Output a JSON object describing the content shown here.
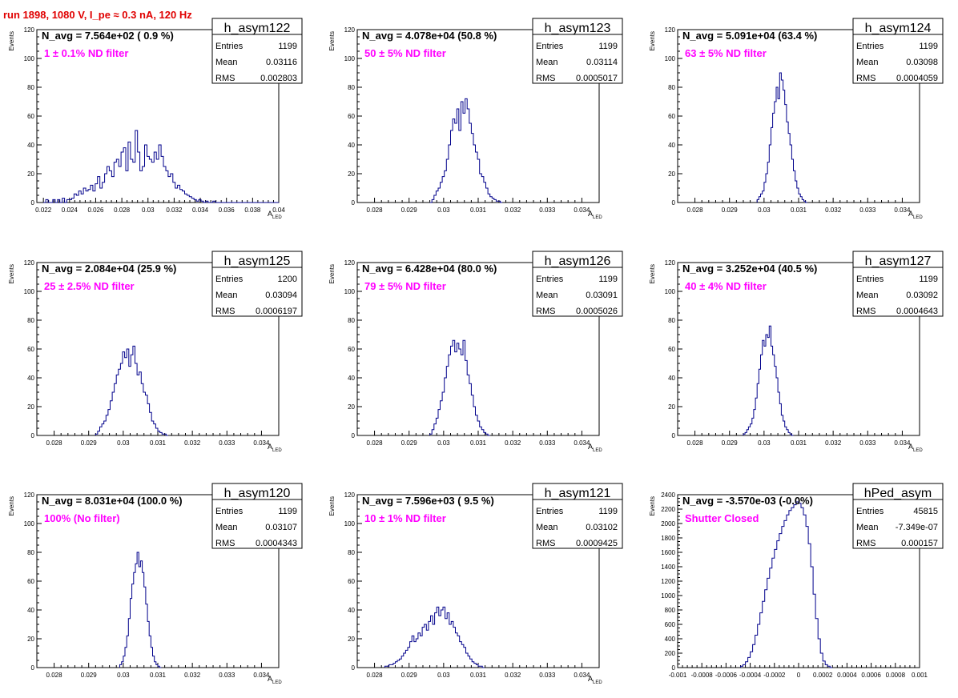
{
  "page": {
    "title": "run 1898,  1080 V, I_pe ≈ 0.3 nA, 120 Hz"
  },
  "colors": {
    "histogram_line": "#00008b",
    "annotation": "#ff00ff",
    "title": "#e00000",
    "axis": "#000000"
  },
  "chart_data": [
    {
      "type": "histogram",
      "name": "h_asym122",
      "ylabel": "Events",
      "xlabel": "A_LED",
      "navg_label": "N_avg = 7.564e+02 ( 0.9 %)",
      "annotation": "1 ± 0.1% ND filter",
      "stats": {
        "Entries": "1199",
        "Mean": "0.03116",
        "RMS": "0.002803"
      },
      "xlim": [
        0.0215,
        0.04
      ],
      "ylim": [
        0,
        120
      ],
      "xticks": [
        "0.022",
        "0.024",
        "0.026",
        "0.028",
        "0.03",
        "0.032",
        "0.034",
        "0.036",
        "0.038",
        "0.04"
      ],
      "xtick_values": [
        0.022,
        0.024,
        0.026,
        0.028,
        0.03,
        0.032,
        0.034,
        0.036,
        0.038,
        0.04
      ],
      "yticks": [
        0,
        20,
        40,
        60,
        80,
        100,
        120
      ],
      "bins": {
        "start": 0.022,
        "width": 0.00018,
        "values": [
          0,
          2,
          0,
          0,
          2,
          0,
          2,
          0,
          3,
          0,
          2,
          2,
          3,
          6,
          5,
          8,
          6,
          10,
          8,
          9,
          12,
          8,
          13,
          18,
          10,
          14,
          20,
          25,
          22,
          18,
          28,
          30,
          25,
          35,
          38,
          22,
          42,
          30,
          28,
          50,
          35,
          22,
          25,
          40,
          32,
          30,
          28,
          35,
          30,
          40,
          32,
          25,
          22,
          18,
          20,
          14,
          10,
          12,
          9,
          8,
          6,
          5,
          4,
          3,
          2,
          1,
          2,
          1,
          0,
          1,
          0,
          0,
          1,
          0,
          0,
          0,
          0,
          0,
          0,
          0,
          0,
          0,
          0,
          0,
          0,
          0,
          0,
          0,
          0,
          0,
          0,
          0,
          0,
          0,
          0,
          0,
          0,
          0,
          0,
          0
        ]
      }
    },
    {
      "type": "histogram",
      "name": "h_asym123",
      "ylabel": "Events",
      "xlabel": "A_LED",
      "navg_label": "N_avg = 4.078e+04 (50.8 %)",
      "annotation": "50 ± 5% ND filter",
      "stats": {
        "Entries": "1199",
        "Mean": "0.03114",
        "RMS": "0.0005017"
      },
      "xlim": [
        0.0275,
        0.0345
      ],
      "ylim": [
        0,
        120
      ],
      "xticks": [
        "0.028",
        "0.029",
        "0.03",
        "0.031",
        "0.032",
        "0.033",
        "0.034"
      ],
      "xtick_values": [
        0.028,
        0.029,
        0.03,
        0.031,
        0.032,
        0.033,
        0.034
      ],
      "yticks": [
        0,
        20,
        40,
        60,
        80,
        100,
        120
      ],
      "bins": {
        "start": 0.0296,
        "width": 6e-05,
        "values": [
          0,
          2,
          5,
          8,
          10,
          14,
          18,
          22,
          30,
          40,
          50,
          58,
          55,
          65,
          50,
          70,
          62,
          72,
          65,
          55,
          48,
          40,
          35,
          30,
          20,
          18,
          14,
          10,
          6,
          4,
          3,
          2,
          1,
          1,
          0
        ]
      }
    },
    {
      "type": "histogram",
      "name": "h_asym124",
      "ylabel": "Events",
      "xlabel": "A_LED",
      "navg_label": "N_avg = 5.091e+04 (63.4 %)",
      "annotation": "63 ± 5% ND filter",
      "stats": {
        "Entries": "1199",
        "Mean": "0.03098",
        "RMS": "0.0004059"
      },
      "xlim": [
        0.0275,
        0.0345
      ],
      "ylim": [
        0,
        120
      ],
      "xticks": [
        "0.028",
        "0.029",
        "0.03",
        "0.031",
        "0.032",
        "0.033",
        "0.034"
      ],
      "xtick_values": [
        0.028,
        0.029,
        0.03,
        0.031,
        0.032,
        0.033,
        0.034
      ],
      "yticks": [
        0,
        20,
        40,
        60,
        80,
        100,
        120
      ],
      "bins": {
        "start": 0.0298,
        "width": 5e-05,
        "values": [
          2,
          4,
          6,
          8,
          14,
          20,
          28,
          40,
          52,
          62,
          70,
          80,
          72,
          90,
          85,
          78,
          68,
          56,
          48,
          40,
          30,
          22,
          15,
          10,
          6,
          4,
          2,
          1,
          0
        ]
      }
    },
    {
      "type": "histogram",
      "name": "h_asym125",
      "ylabel": "Events",
      "xlabel": "A_LED",
      "navg_label": "N_avg = 2.084e+04 (25.9 %)",
      "annotation": "25 ± 2.5% ND filter",
      "stats": {
        "Entries": "1200",
        "Mean": "0.03094",
        "RMS": "0.0006197"
      },
      "xlim": [
        0.0275,
        0.0345
      ],
      "ylim": [
        0,
        120
      ],
      "xticks": [
        "0.028",
        "0.029",
        "0.03",
        "0.031",
        "0.032",
        "0.033",
        "0.034"
      ],
      "xtick_values": [
        0.028,
        0.029,
        0.03,
        0.031,
        0.032,
        0.033,
        0.034
      ],
      "yticks": [
        0,
        20,
        40,
        60,
        80,
        100,
        120
      ],
      "bins": {
        "start": 0.0292,
        "width": 6e-05,
        "values": [
          1,
          3,
          6,
          8,
          10,
          14,
          18,
          24,
          30,
          36,
          42,
          46,
          50,
          58,
          54,
          60,
          48,
          56,
          62,
          50,
          42,
          44,
          36,
          30,
          28,
          22,
          16,
          10,
          8,
          5,
          3,
          2,
          1,
          1,
          0
        ]
      }
    },
    {
      "type": "histogram",
      "name": "h_asym126",
      "ylabel": "Events",
      "xlabel": "A_LED",
      "navg_label": "N_avg = 6.428e+04 (80.0 %)",
      "annotation": "79 ± 5% ND filter",
      "stats": {
        "Entries": "1199",
        "Mean": "0.03091",
        "RMS": "0.0005026"
      },
      "xlim": [
        0.0275,
        0.0345
      ],
      "ylim": [
        0,
        120
      ],
      "xticks": [
        "0.028",
        "0.029",
        "0.03",
        "0.031",
        "0.032",
        "0.033",
        "0.034"
      ],
      "xtick_values": [
        0.028,
        0.029,
        0.03,
        0.031,
        0.032,
        0.033,
        0.034
      ],
      "yticks": [
        0,
        20,
        40,
        60,
        80,
        100,
        120
      ],
      "bins": {
        "start": 0.0296,
        "width": 6e-05,
        "values": [
          1,
          4,
          8,
          12,
          18,
          24,
          30,
          40,
          48,
          56,
          62,
          66,
          58,
          64,
          60,
          56,
          66,
          52,
          42,
          36,
          28,
          20,
          14,
          10,
          6,
          4,
          2,
          1,
          0
        ]
      }
    },
    {
      "type": "histogram",
      "name": "h_asym127",
      "ylabel": "Events",
      "xlabel": "A_LED",
      "navg_label": "N_avg = 3.252e+04 (40.5 %)",
      "annotation": "40 ± 4% ND filter",
      "stats": {
        "Entries": "1199",
        "Mean": "0.03092",
        "RMS": "0.0004643"
      },
      "xlim": [
        0.0275,
        0.0345
      ],
      "ylim": [
        0,
        120
      ],
      "xticks": [
        "0.028",
        "0.029",
        "0.03",
        "0.031",
        "0.032",
        "0.033",
        "0.034"
      ],
      "xtick_values": [
        0.028,
        0.029,
        0.03,
        0.031,
        0.032,
        0.033,
        0.034
      ],
      "yticks": [
        0,
        20,
        40,
        60,
        80,
        100,
        120
      ],
      "bins": {
        "start": 0.0294,
        "width": 5e-05,
        "values": [
          1,
          2,
          4,
          6,
          8,
          12,
          18,
          26,
          36,
          46,
          56,
          66,
          62,
          70,
          68,
          76,
          62,
          56,
          48,
          40,
          30,
          22,
          14,
          10,
          6,
          4,
          2,
          1,
          0
        ]
      }
    },
    {
      "type": "histogram",
      "name": "h_asym120",
      "ylabel": "Events",
      "xlabel": "A_LED",
      "navg_label": "N_avg = 8.031e+04 (100.0 %)",
      "annotation": "100% (No filter)",
      "stats": {
        "Entries": "1199",
        "Mean": "0.03107",
        "RMS": "0.0004343"
      },
      "xlim": [
        0.0275,
        0.0345
      ],
      "ylim": [
        0,
        120
      ],
      "xticks": [
        "0.028",
        "0.029",
        "0.03",
        "0.031",
        "0.032",
        "0.033",
        "0.034"
      ],
      "xtick_values": [
        0.028,
        0.029,
        0.03,
        0.031,
        0.032,
        0.033,
        0.034
      ],
      "yticks": [
        0,
        20,
        40,
        60,
        80,
        100,
        120
      ],
      "bins": {
        "start": 0.0299,
        "width": 5e-05,
        "values": [
          2,
          4,
          8,
          14,
          22,
          34,
          48,
          58,
          66,
          72,
          80,
          70,
          74,
          66,
          56,
          44,
          32,
          22,
          14,
          8,
          4,
          2,
          1,
          0
        ]
      }
    },
    {
      "type": "histogram",
      "name": "h_asym121",
      "ylabel": "Events",
      "xlabel": "A_LED",
      "navg_label": "N_avg = 7.596e+03 ( 9.5 %)",
      "annotation": "10 ± 1% ND filter",
      "stats": {
        "Entries": "1199",
        "Mean": "0.03102",
        "RMS": "0.0009425"
      },
      "xlim": [
        0.0275,
        0.0345
      ],
      "ylim": [
        0,
        120
      ],
      "xticks": [
        "0.028",
        "0.029",
        "0.03",
        "0.031",
        "0.032",
        "0.033",
        "0.034"
      ],
      "xtick_values": [
        0.028,
        0.029,
        0.03,
        0.031,
        0.032,
        0.033,
        0.034
      ],
      "yticks": [
        0,
        20,
        40,
        60,
        80,
        100,
        120
      ],
      "bins": {
        "start": 0.0283,
        "width": 6e-05,
        "values": [
          1,
          1,
          2,
          2,
          3,
          4,
          5,
          6,
          8,
          10,
          12,
          14,
          18,
          22,
          18,
          20,
          24,
          22,
          28,
          30,
          26,
          32,
          36,
          30,
          38,
          42,
          36,
          40,
          42,
          34,
          38,
          30,
          32,
          28,
          24,
          22,
          18,
          16,
          14,
          10,
          8,
          6,
          4,
          3,
          2,
          1,
          1,
          0
        ]
      }
    },
    {
      "type": "histogram",
      "name": "hPed_asym",
      "ylabel": "Events",
      "xlabel": "",
      "navg_label": "N_avg = -3.570e-03 (-0.0%)",
      "annotation": "Shutter Closed",
      "stats": {
        "Entries": "45815",
        "Mean": "-7.349e-07",
        "RMS": "0.000157"
      },
      "xlim": [
        -0.001,
        0.001
      ],
      "ylim": [
        0,
        2400
      ],
      "xticks": [
        "-0.001",
        "-0.0008",
        "-0.0006",
        "-0.0004",
        "-0.0002",
        "0",
        "0.0002",
        "0.0004",
        "0.0006",
        "0.0008",
        "0.001"
      ],
      "xtick_values": [
        -0.001,
        -0.0008,
        -0.0006,
        -0.0004,
        -0.0002,
        0,
        0.0002,
        0.0004,
        0.0006,
        0.0008,
        0.001
      ],
      "yticks": [
        0,
        200,
        400,
        600,
        800,
        1000,
        1200,
        1400,
        1600,
        1800,
        2000,
        2200,
        2400
      ],
      "bins": {
        "start": -0.00048,
        "width": 2e-05,
        "values": [
          20,
          40,
          80,
          140,
          220,
          320,
          450,
          600,
          760,
          920,
          1080,
          1240,
          1380,
          1520,
          1640,
          1760,
          1860,
          1960,
          2040,
          2120,
          2180,
          2220,
          2260,
          2300,
          2280,
          2220,
          2120,
          1960,
          1720,
          1400,
          1020,
          680,
          400,
          200,
          90,
          40,
          20,
          0
        ]
      }
    }
  ]
}
